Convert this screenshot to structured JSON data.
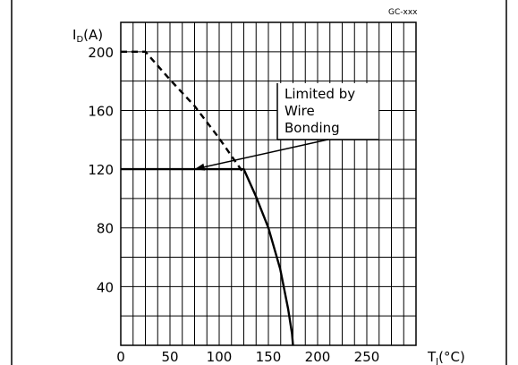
{
  "chart_data": {
    "type": "line",
    "corner_label": "GC-xxx",
    "ylabel": "I_D(A)",
    "xlabel": "T_J(°C)",
    "xlim": [
      0,
      300
    ],
    "ylim": [
      0,
      220
    ],
    "x_ticks": [
      0,
      50,
      100,
      150,
      200,
      250
    ],
    "y_ticks": [
      40,
      80,
      120,
      160,
      200
    ],
    "grid": true,
    "series": [
      {
        "style": "dashed",
        "x": [
          0,
          25,
          50,
          75,
          100,
          125
        ],
        "y": [
          200,
          200,
          181,
          163,
          141,
          117
        ]
      },
      {
        "style": "solid",
        "x": [
          0,
          25,
          50,
          75,
          100,
          125,
          137,
          150,
          162,
          170,
          174,
          175
        ],
        "y": [
          120,
          120,
          120,
          120,
          120,
          120,
          102,
          80,
          52,
          25,
          8,
          0
        ]
      }
    ],
    "annotations": [
      {
        "lines": [
          "Limited by",
          "Wire",
          "Bonding"
        ],
        "arrow_to": {
          "x": 75,
          "y": 120
        }
      }
    ]
  }
}
